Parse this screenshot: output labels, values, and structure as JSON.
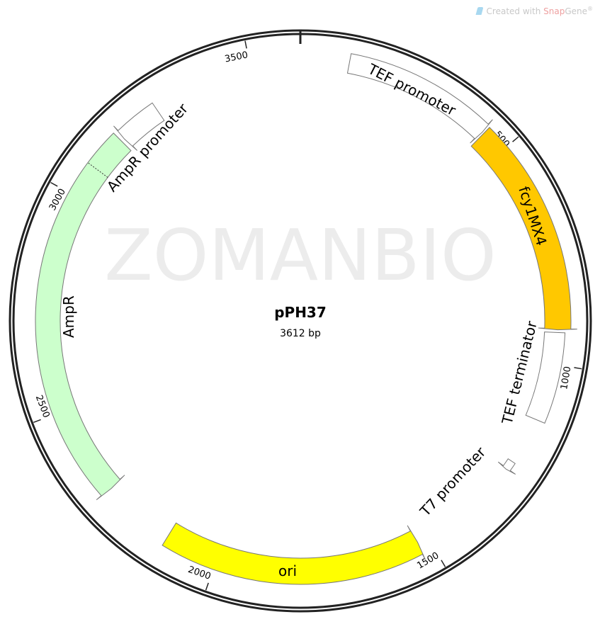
{
  "credit": {
    "prefix": "Created with ",
    "brand_a": "Snap",
    "brand_b": "Gene",
    "mark": "®"
  },
  "watermark": "ZOMANBIO",
  "plasmid": {
    "name": "pPH37",
    "size_label": "3612 bp",
    "length_bp": 3612
  },
  "ticks": [
    {
      "bp": 500,
      "label": "500"
    },
    {
      "bp": 1000,
      "label": "1000"
    },
    {
      "bp": 1500,
      "label": "1500"
    },
    {
      "bp": 2000,
      "label": "2000"
    },
    {
      "bp": 2500,
      "label": "2500"
    },
    {
      "bp": 3000,
      "label": "3000"
    },
    {
      "bp": 3500,
      "label": "3500"
    }
  ],
  "features": [
    {
      "name": "TEF promoter",
      "start": 108,
      "end": 441,
      "strand": 1,
      "fill": "#ffffff"
    },
    {
      "name": "fcy1MX4",
      "start": 445,
      "end": 923,
      "strand": 1,
      "fill": "#ffc800"
    },
    {
      "name": "TEF terminator",
      "start": 929,
      "end": 1131,
      "strand": 0,
      "fill": "#ffffff"
    },
    {
      "name": "T7 promoter",
      "start": 1240,
      "end": 1262,
      "strand": 1,
      "fill": "#ffffff"
    },
    {
      "name": "ori",
      "start": 1526,
      "end": 2123,
      "strand": -1,
      "fill": "#ffff00"
    },
    {
      "name": "AmpR",
      "start": 2292,
      "end": 3162,
      "strand": -1,
      "fill": "#ccffcc"
    },
    {
      "name": "AmpR promoter",
      "start": 3170,
      "end": 3269,
      "strand": -1,
      "fill": "#ffffff"
    }
  ],
  "ampr_boundary_bp": 3077
}
